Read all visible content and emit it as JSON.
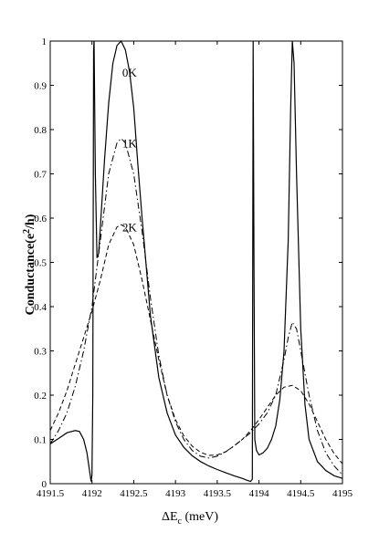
{
  "chart_data": {
    "type": "line",
    "xlabel": "ΔE",
    "xlabel_sub": "c",
    "xlabel_unit": " (meV)",
    "ylabel": "Conductance(e",
    "ylabel_sup": "2",
    "ylabel_tail": "/h)",
    "xlim": [
      4191.5,
      4195
    ],
    "ylim": [
      0,
      1
    ],
    "x_ticks": [
      4191.5,
      4192,
      4192.5,
      4193,
      4193.5,
      4194,
      4194.5,
      4195
    ],
    "x_tick_labels": [
      "4191.5",
      "4192",
      "4192.5",
      "4193",
      "4193.5",
      "4194",
      "4194.5",
      "4195"
    ],
    "y_ticks": [
      0,
      0.1,
      0.2,
      0.3,
      0.4,
      0.5,
      0.6,
      0.7,
      0.8,
      0.9,
      1
    ],
    "y_tick_labels": [
      "0",
      "0.1",
      "0.2",
      "0.3",
      "0.4",
      "0.5",
      "0.6",
      "0.7",
      "0.8",
      "0.9",
      "1"
    ],
    "grid": false,
    "annotations": [
      {
        "text": "0K",
        "x": 4192.45,
        "y": 0.92
      },
      {
        "text": "1K",
        "x": 4192.45,
        "y": 0.76
      },
      {
        "text": "2K",
        "x": 4192.45,
        "y": 0.57
      }
    ],
    "series": [
      {
        "label": "0K",
        "style": "solid",
        "x": [
          4191.5,
          4191.6,
          4191.7,
          4191.8,
          4191.85,
          4191.9,
          4191.94,
          4191.97,
          4191.99,
          4192.0,
          4192.01,
          4192.02,
          4192.025,
          4192.04,
          4192.06,
          4192.08,
          4192.1,
          4192.15,
          4192.2,
          4192.25,
          4192.3,
          4192.35,
          4192.4,
          4192.45,
          4192.5,
          4192.55,
          4192.6,
          4192.7,
          4192.8,
          4192.9,
          4193.0,
          4193.1,
          4193.2,
          4193.3,
          4193.4,
          4193.5,
          4193.6,
          4193.7,
          4193.8,
          4193.85,
          4193.9,
          4193.92,
          4193.93,
          4193.94,
          4193.95,
          4193.97,
          4194.0,
          4194.05,
          4194.1,
          4194.15,
          4194.2,
          4194.25,
          4194.3,
          4194.35,
          4194.38,
          4194.4,
          4194.42,
          4194.45,
          4194.5,
          4194.55,
          4194.6,
          4194.7,
          4194.8,
          4194.9,
          4195.0
        ],
        "y": [
          0.09,
          0.102,
          0.115,
          0.12,
          0.118,
          0.1,
          0.07,
          0.03,
          0.005,
          0.02,
          0.2,
          0.98,
          1.0,
          0.7,
          0.51,
          0.52,
          0.58,
          0.73,
          0.86,
          0.95,
          0.99,
          1.0,
          0.98,
          0.93,
          0.85,
          0.72,
          0.6,
          0.38,
          0.24,
          0.16,
          0.11,
          0.082,
          0.063,
          0.05,
          0.04,
          0.032,
          0.025,
          0.018,
          0.012,
          0.008,
          0.005,
          0.01,
          1.0,
          0.5,
          0.1,
          0.075,
          0.065,
          0.07,
          0.08,
          0.1,
          0.13,
          0.19,
          0.3,
          0.55,
          0.85,
          1.0,
          0.95,
          0.7,
          0.35,
          0.18,
          0.1,
          0.05,
          0.03,
          0.018,
          0.012
        ]
      },
      {
        "label": "1K",
        "style": "dashdot",
        "x": [
          4191.5,
          4191.6,
          4191.7,
          4191.8,
          4191.9,
          4192.0,
          4192.1,
          4192.2,
          4192.3,
          4192.35,
          4192.4,
          4192.5,
          4192.6,
          4192.7,
          4192.8,
          4192.9,
          4193.0,
          4193.1,
          4193.2,
          4193.3,
          4193.4,
          4193.5,
          4193.6,
          4193.7,
          4193.8,
          4193.9,
          4194.0,
          4194.1,
          4194.2,
          4194.3,
          4194.35,
          4194.4,
          4194.45,
          4194.5,
          4194.6,
          4194.7,
          4194.8,
          4194.9,
          4195.0
        ],
        "y": [
          0.09,
          0.12,
          0.16,
          0.22,
          0.3,
          0.4,
          0.55,
          0.7,
          0.77,
          0.78,
          0.77,
          0.7,
          0.57,
          0.42,
          0.29,
          0.2,
          0.14,
          0.1,
          0.075,
          0.062,
          0.058,
          0.062,
          0.072,
          0.085,
          0.1,
          0.115,
          0.135,
          0.16,
          0.2,
          0.28,
          0.33,
          0.365,
          0.35,
          0.3,
          0.2,
          0.12,
          0.07,
          0.04,
          0.02
        ]
      },
      {
        "label": "2K",
        "style": "dashed",
        "x": [
          4191.5,
          4191.6,
          4191.7,
          4191.8,
          4191.9,
          4192.0,
          4192.1,
          4192.2,
          4192.3,
          4192.35,
          4192.4,
          4192.5,
          4192.6,
          4192.7,
          4192.8,
          4192.9,
          4193.0,
          4193.1,
          4193.2,
          4193.3,
          4193.4,
          4193.5,
          4193.6,
          4193.7,
          4193.8,
          4193.9,
          4194.0,
          4194.1,
          4194.2,
          4194.3,
          4194.4,
          4194.5,
          4194.6,
          4194.7,
          4194.8,
          4194.9,
          4195.0
        ],
        "y": [
          0.12,
          0.16,
          0.21,
          0.27,
          0.33,
          0.39,
          0.46,
          0.54,
          0.58,
          0.585,
          0.58,
          0.54,
          0.46,
          0.37,
          0.28,
          0.2,
          0.145,
          0.108,
          0.085,
          0.071,
          0.064,
          0.065,
          0.072,
          0.085,
          0.1,
          0.12,
          0.145,
          0.172,
          0.2,
          0.218,
          0.222,
          0.21,
          0.18,
          0.14,
          0.1,
          0.068,
          0.045
        ]
      }
    ]
  }
}
